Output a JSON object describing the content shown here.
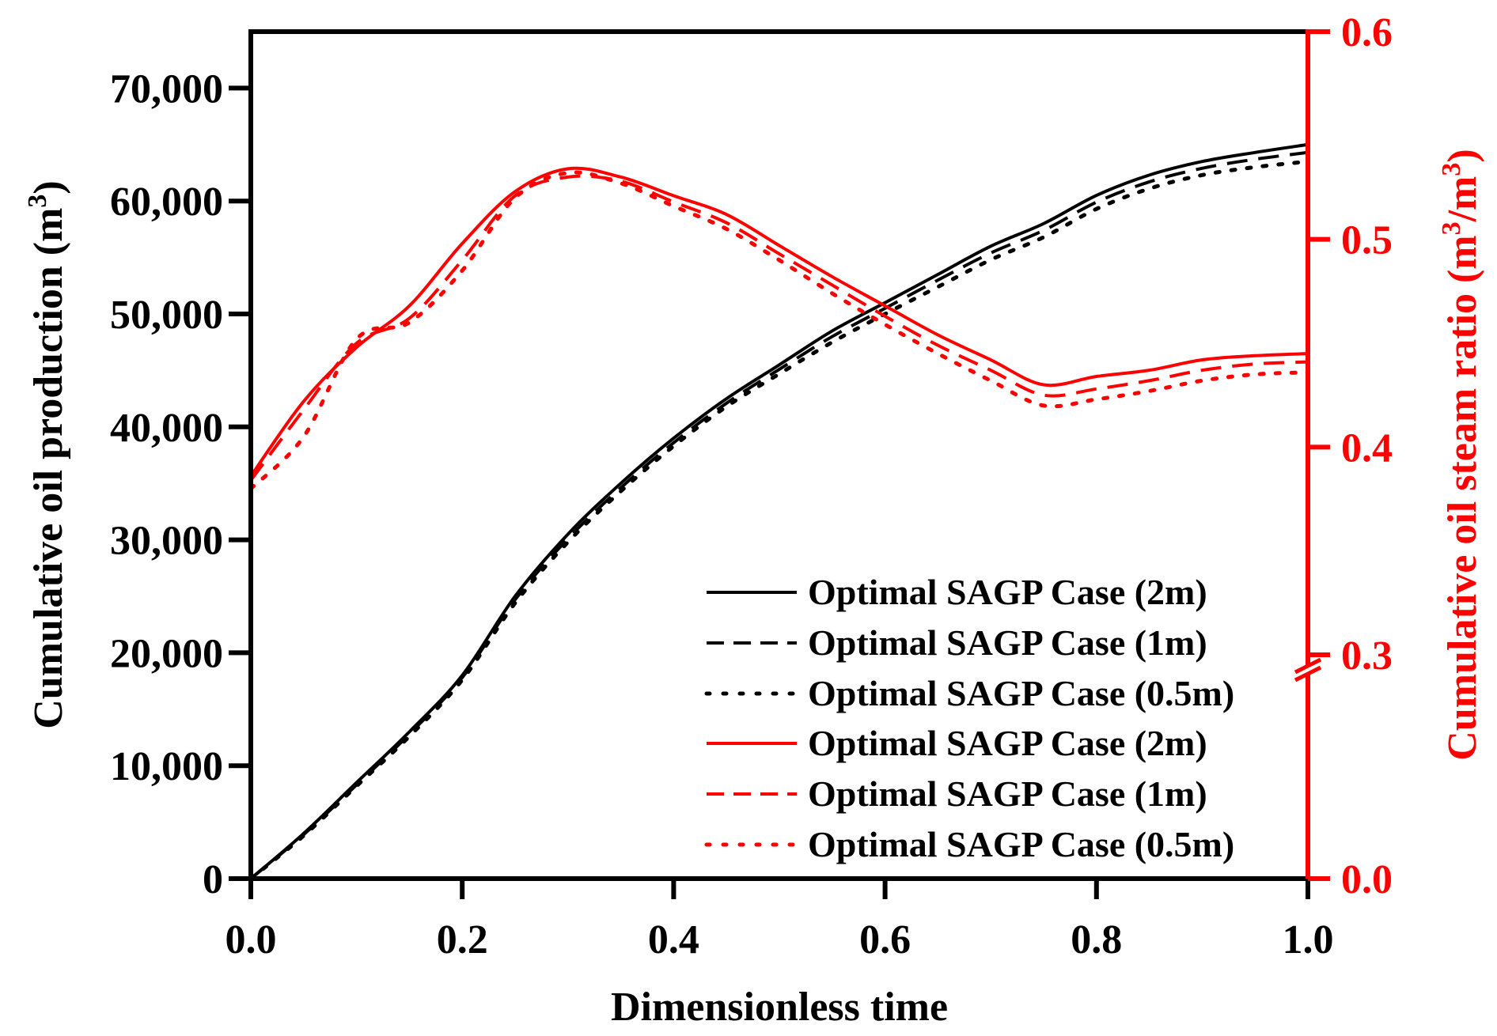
{
  "chart_data": {
    "type": "line",
    "xlabel": "Dimensionless time",
    "ylabel_left": "Cumulative oil production (m",
    "ylabel_left_sup": "3",
    "ylabel_left_end": ")",
    "ylabel_right": "Cumulative oil steam ratio (m",
    "ylabel_right_sup1": "3",
    "ylabel_right_mid": "/m",
    "ylabel_right_sup2": "3",
    "ylabel_right_end": ")",
    "xlim": [
      0,
      1
    ],
    "ylim_left": [
      0,
      75000
    ],
    "ylim_right": [
      0,
      0.6
    ],
    "right_axis_break": 0.3,
    "x_ticks": [
      "0.0",
      "0.2",
      "0.4",
      "0.6",
      "0.8",
      "1.0"
    ],
    "x_tick_values": [
      0,
      0.2,
      0.4,
      0.6,
      0.8,
      1.0
    ],
    "left_ticks": [
      "0",
      "10,000",
      "20,000",
      "30,000",
      "40,000",
      "50,000",
      "60,000",
      "70,000"
    ],
    "left_tick_values": [
      0,
      10000,
      20000,
      30000,
      40000,
      50000,
      60000,
      70000
    ],
    "right_ticks": [
      "0.0",
      "0.3",
      "0.4",
      "0.5",
      "0.6"
    ],
    "right_tick_values": [
      0,
      0.3,
      0.4,
      0.5,
      0.6
    ],
    "colors": {
      "left": "#000000",
      "right": "#ff0000"
    },
    "legend_position": "bottom-right",
    "x": [
      0,
      0.05,
      0.1,
      0.15,
      0.2,
      0.25,
      0.3,
      0.35,
      0.4,
      0.45,
      0.5,
      0.55,
      0.6,
      0.65,
      0.7,
      0.75,
      0.8,
      0.85,
      0.9,
      0.95,
      1.0
    ],
    "series": [
      {
        "name": "Optimal SAGP Case (2m)",
        "axis": "left",
        "color": "#000000",
        "style": "solid",
        "values": [
          0,
          4000,
          8500,
          13000,
          18000,
          25000,
          30500,
          35000,
          39000,
          42500,
          45500,
          48500,
          51000,
          53500,
          56000,
          58000,
          60500,
          62300,
          63500,
          64300,
          65000
        ]
      },
      {
        "name": "Optimal SAGP Case (1m)",
        "axis": "left",
        "color": "#000000",
        "style": "dashed",
        "values": [
          0,
          3900,
          8300,
          12800,
          17800,
          24700,
          30100,
          34600,
          38600,
          42100,
          45100,
          48000,
          50500,
          53000,
          55400,
          57400,
          59900,
          61700,
          62900,
          63700,
          64300
        ]
      },
      {
        "name": "Optimal SAGP Case (0.5m)",
        "axis": "left",
        "color": "#000000",
        "style": "dotted",
        "values": [
          0,
          3800,
          8200,
          12600,
          17600,
          24400,
          29800,
          34300,
          38300,
          41800,
          44700,
          47500,
          50000,
          52400,
          54800,
          56800,
          59300,
          61100,
          62300,
          63000,
          63500
        ]
      },
      {
        "name": "Optimal SAGP Case (2m)",
        "axis": "right",
        "color": "#ff0000",
        "style": "solid",
        "values": [
          0.386,
          0.422,
          0.448,
          0.468,
          0.498,
          0.523,
          0.534,
          0.53,
          0.521,
          0.512,
          0.497,
          0.482,
          0.468,
          0.454,
          0.442,
          0.43,
          0.434,
          0.437,
          0.442,
          0.444,
          0.445
        ]
      },
      {
        "name": "Optimal SAGP Case (1m)",
        "axis": "right",
        "color": "#ff0000",
        "style": "dashed",
        "values": [
          0.384,
          0.418,
          0.45,
          0.462,
          0.49,
          0.521,
          0.53,
          0.528,
          0.518,
          0.508,
          0.493,
          0.478,
          0.463,
          0.449,
          0.437,
          0.425,
          0.428,
          0.432,
          0.437,
          0.44,
          0.441
        ]
      },
      {
        "name": "Optimal SAGP Case (0.5m)",
        "axis": "right",
        "color": "#ff0000",
        "style": "dotted",
        "values": [
          0.38,
          0.405,
          0.452,
          0.46,
          0.485,
          0.52,
          0.532,
          0.527,
          0.516,
          0.505,
          0.49,
          0.474,
          0.459,
          0.445,
          0.432,
          0.42,
          0.423,
          0.427,
          0.432,
          0.435,
          0.436
        ]
      }
    ]
  }
}
